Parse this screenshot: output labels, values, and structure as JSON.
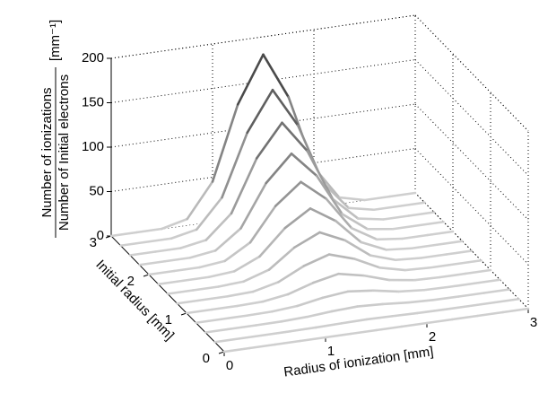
{
  "chart_data": {
    "type": "waterfall3d",
    "zlabel_numerator": "Number of ionizations",
    "zlabel_denominator": "Number of Initial electrons",
    "zlabel_unit": "[mm⁻¹]",
    "xlabel": "Radius of ionization [mm]",
    "ylabel": "Initial radius [mm]",
    "xlim": [
      0,
      3
    ],
    "ylim": [
      0,
      3
    ],
    "zlim": [
      0,
      200
    ],
    "xticks": [
      0,
      1,
      2,
      3
    ],
    "yticks": [
      0,
      1,
      2,
      3
    ],
    "zticks": [
      0,
      50,
      100,
      150,
      200
    ],
    "grid": true,
    "colormap": [
      "#cfcfcf",
      "#222222"
    ],
    "x": [
      0,
      0.25,
      0.5,
      0.75,
      1,
      1.25,
      1.5,
      1.75,
      2,
      2.25,
      2.5,
      2.75,
      3
    ],
    "y": [
      0,
      0.25,
      0.5,
      0.75,
      1,
      1.25,
      1.5,
      1.75,
      2,
      2.25,
      2.5,
      2.75,
      3
    ],
    "values": [
      [
        0,
        0,
        0,
        0,
        0,
        0,
        0,
        0,
        0,
        0,
        0,
        0,
        0
      ],
      [
        0,
        0,
        0,
        0.1,
        0.3,
        0.9,
        1.3,
        0.9,
        0.3,
        0.1,
        0,
        0,
        0
      ],
      [
        0,
        0,
        0,
        0.2,
        1.3,
        3.6,
        5,
        3.6,
        1.3,
        0.2,
        0,
        0,
        0
      ],
      [
        0,
        0,
        0,
        0.5,
        2.8,
        8,
        11,
        8,
        2.8,
        0.5,
        0,
        0,
        0
      ],
      [
        0,
        0,
        0,
        0.8,
        5,
        14,
        20,
        14,
        5,
        0.8,
        0,
        0,
        0
      ],
      [
        0,
        0,
        0,
        1.2,
        8,
        22,
        31,
        22,
        8,
        1.2,
        0,
        0,
        0
      ],
      [
        0,
        0,
        0,
        1.8,
        11,
        32,
        45,
        32,
        11,
        1.8,
        0,
        0,
        0
      ],
      [
        0,
        0,
        0,
        2.4,
        15,
        43,
        61,
        43,
        15,
        2.4,
        0,
        0,
        0
      ],
      [
        0,
        0,
        0,
        3.2,
        20,
        57,
        80,
        57,
        20,
        3.2,
        0,
        0,
        0
      ],
      [
        0,
        0,
        0,
        4,
        25,
        72,
        101,
        72,
        25,
        4,
        0,
        0,
        0
      ],
      [
        0,
        0,
        0,
        5,
        31,
        89,
        125,
        89,
        31,
        5,
        0,
        0,
        0
      ],
      [
        0,
        0,
        0,
        6,
        38,
        107,
        151,
        107,
        38,
        6,
        0,
        0,
        0
      ],
      [
        0,
        0,
        0,
        7,
        45,
        128,
        180,
        128,
        45,
        7,
        0,
        0,
        0
      ]
    ]
  }
}
